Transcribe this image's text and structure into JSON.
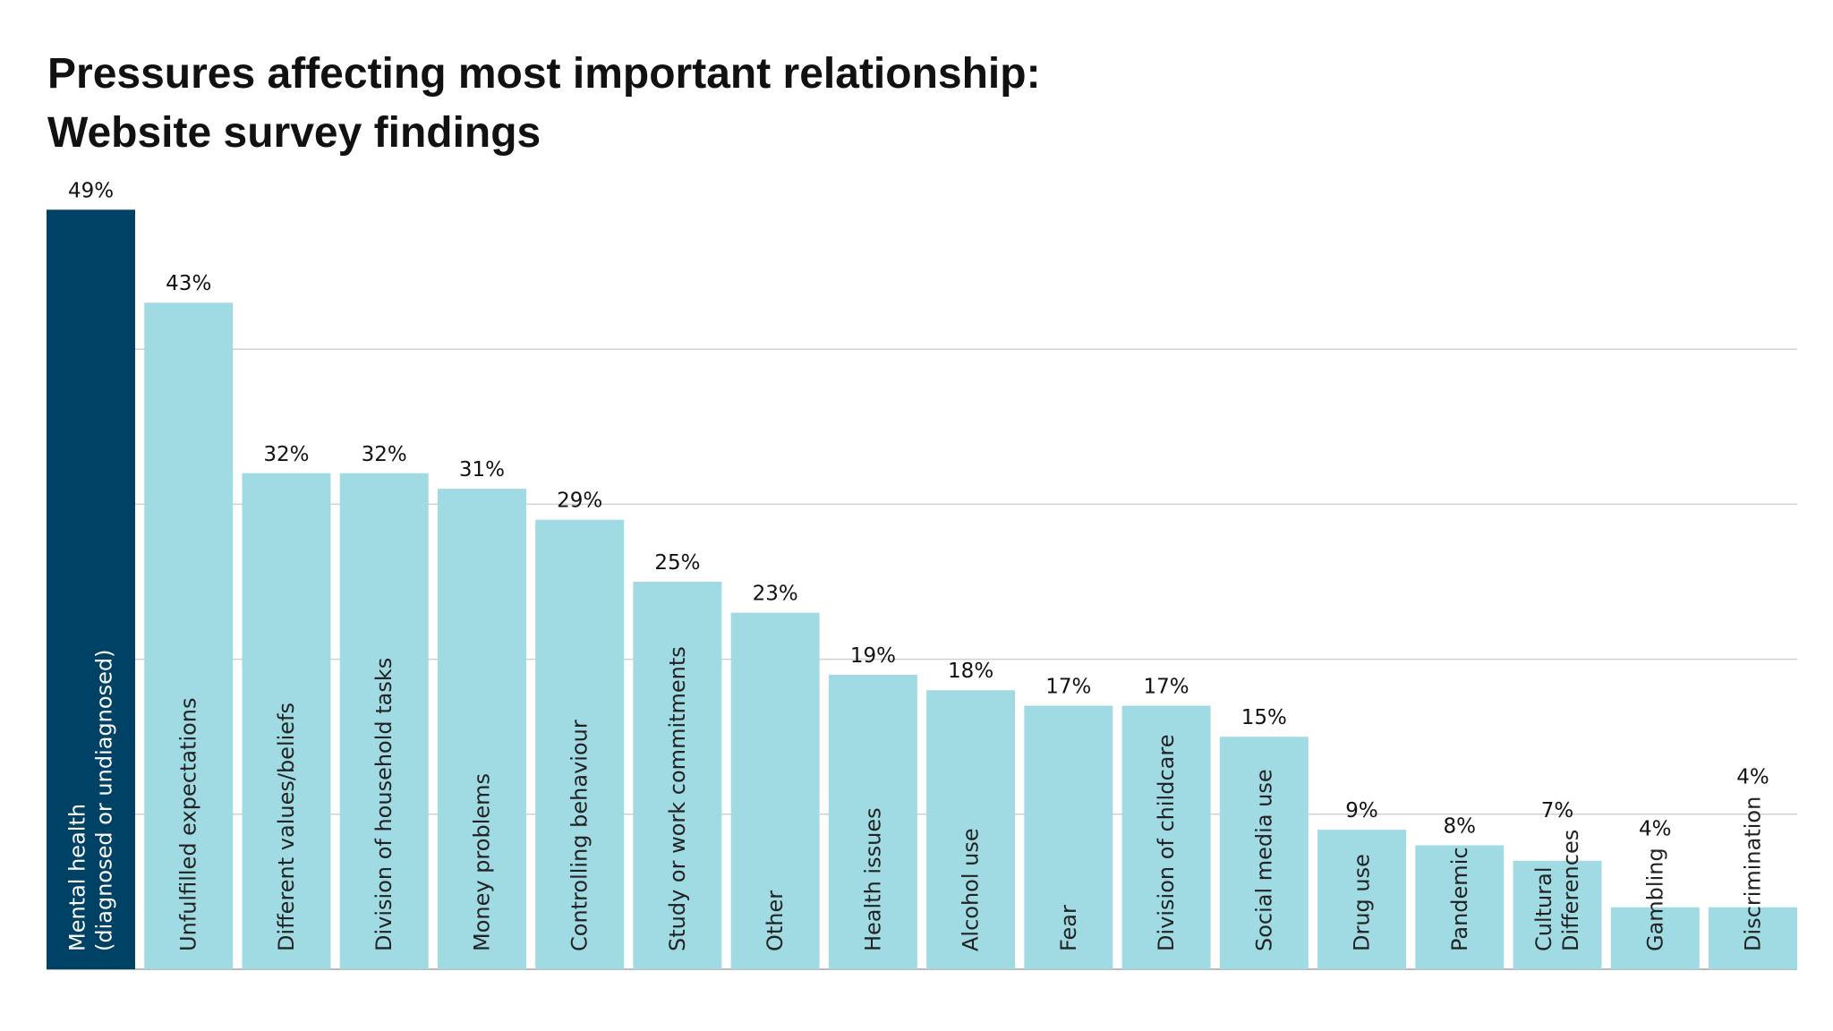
{
  "chart_data": {
    "type": "bar",
    "title": "Pressures affecting most important relationship:",
    "subtitle": "Website survey findings",
    "categories": [
      "Mental health\n(diagnosed or undiagnosed)",
      "Unfulfilled expectations",
      "Different values/beliefs",
      "Division of household tasks",
      "Money problems",
      "Controlling behaviour",
      "Study or work commitments",
      "Other",
      "Health issues",
      "Alcohol use",
      "Fear",
      "Division of childcare",
      "Social media use",
      "Drug use",
      "Pandemic",
      "Cultural\nDifferences",
      "Gambling",
      "Discrimination"
    ],
    "values": [
      49,
      43,
      32,
      32,
      31,
      29,
      25,
      23,
      19,
      18,
      17,
      17,
      15,
      9,
      8,
      7,
      4,
      4
    ],
    "value_labels": [
      "49%",
      "43%",
      "32%",
      "32%",
      "31%",
      "29%",
      "25%",
      "23%",
      "19%",
      "18%",
      "17%",
      "17%",
      "15%",
      "9%",
      "8%",
      "7%",
      "4%",
      "4%"
    ],
    "unit": "%",
    "ylim": [
      0,
      50
    ],
    "gridlines": [
      10,
      20,
      30,
      40
    ],
    "grid": true,
    "xlabel": "",
    "ylabel": "",
    "colors": {
      "highlight": "#004266",
      "bar": "#a0dbe4",
      "grid": "#d0d0d0",
      "highlight_text": "#ffffff",
      "text": "#222222"
    }
  }
}
